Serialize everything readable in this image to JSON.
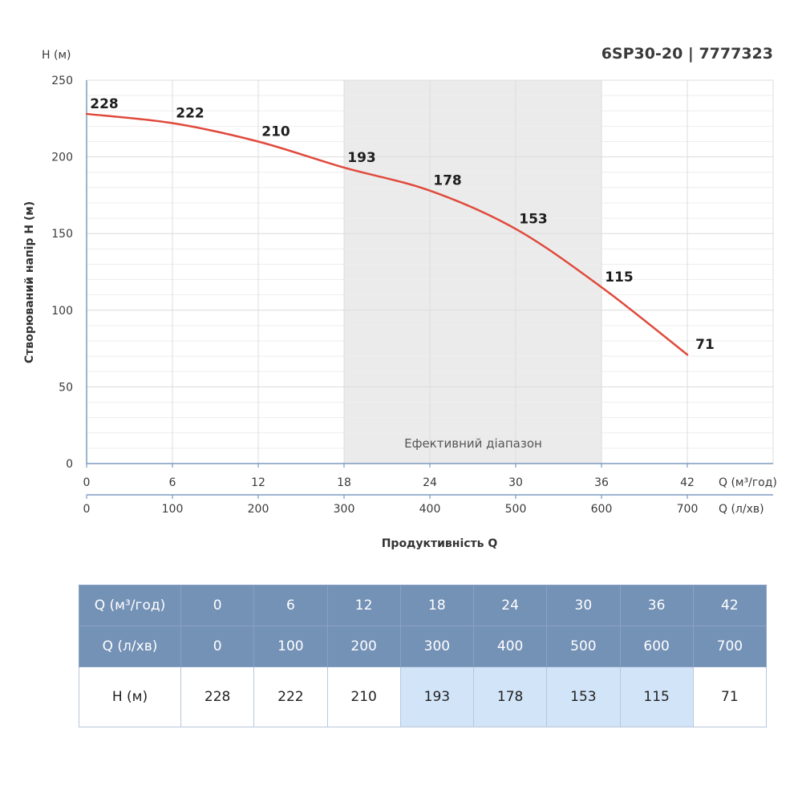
{
  "chart_data": {
    "type": "line",
    "title": "6SP30-20 | 7777323",
    "ylabel": "Створюваний напір H (м)",
    "y_unit": "H (м)",
    "xlabel": "Продуктивність Q",
    "x_unit_primary": "Q (м³/год)",
    "x_unit_secondary": "Q (л/хв)",
    "x": [
      0,
      6,
      12,
      18,
      24,
      30,
      36,
      42
    ],
    "x_secondary": [
      0,
      100,
      200,
      300,
      400,
      500,
      600,
      700
    ],
    "xlim": [
      0,
      48
    ],
    "ylim": [
      0,
      250
    ],
    "yticks": [
      0,
      50,
      100,
      150,
      200,
      250
    ],
    "grid": true,
    "series": [
      {
        "values": [
          228,
          222,
          210,
          193,
          178,
          153,
          115,
          71
        ],
        "color": "#e04a3c"
      }
    ],
    "efficient_range": {
      "label": "Ефективний діапазон",
      "from": 18,
      "to": 36,
      "color": "#ebebeb"
    }
  },
  "table": {
    "rows": [
      {
        "label": "Q (м³/год)",
        "values": [
          "0",
          "6",
          "12",
          "18",
          "24",
          "30",
          "36",
          "42"
        ]
      },
      {
        "label": "Q (л/хв)",
        "values": [
          "0",
          "100",
          "200",
          "300",
          "400",
          "500",
          "600",
          "700"
        ]
      },
      {
        "label": "H (м)",
        "values": [
          "228",
          "222",
          "210",
          "193",
          "178",
          "153",
          "115",
          "71"
        ]
      }
    ],
    "highlight_color": "#d2e5f8",
    "header_color": "#7491b6"
  }
}
